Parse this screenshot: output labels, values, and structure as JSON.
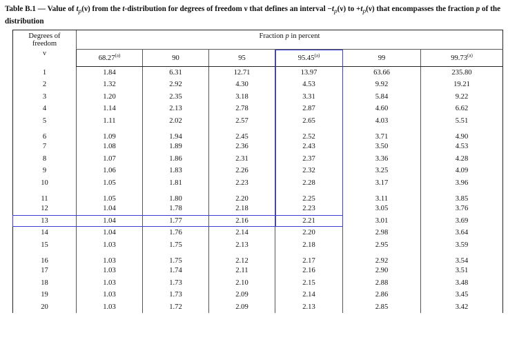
{
  "caption": {
    "label": "Table B.1",
    "dash": " — ",
    "pre1": "Value of ",
    "t_sym": "t",
    "p_sub": "p",
    "v_arg": "(ν)",
    "mid1": " from the ",
    "t_dist": "t",
    "mid2": "-distribution for degrees of freedom ν that defines an interval −",
    "t2": "t",
    "p2": "p",
    "v2": "(ν)",
    "mid3": " to +",
    "t3": "t",
    "p3": "p",
    "v3": "(ν)",
    "mid4": " that encompasses the fraction ",
    "p_frac": "p",
    "end": " of the distribution"
  },
  "table": {
    "dof_header_line1": "Degrees of",
    "dof_header_line2": "freedom",
    "dof_header_line3": "ν",
    "fraction_header_pre": "Fraction ",
    "fraction_header_p": "p",
    "fraction_header_post": " in percent",
    "columns": [
      {
        "label": "68.27",
        "sup": "(a)"
      },
      {
        "label": "90",
        "sup": ""
      },
      {
        "label": "95",
        "sup": ""
      },
      {
        "label": "95.45",
        "sup": "(a)"
      },
      {
        "label": "99",
        "sup": ""
      },
      {
        "label": "99.73",
        "sup": "(a)"
      }
    ],
    "rows": [
      [
        "1",
        "1.84",
        "6.31",
        "12.71",
        "13.97",
        "63.66",
        "235.80"
      ],
      [
        "2",
        "1.32",
        "2.92",
        "4.30",
        "4.53",
        "9.92",
        "19.21"
      ],
      [
        "3",
        "1.20",
        "2.35",
        "3.18",
        "3.31",
        "5.84",
        "9.22"
      ],
      [
        "4",
        "1.14",
        "2.13",
        "2.78",
        "2.87",
        "4.60",
        "6.62"
      ],
      [
        "5",
        "1.11",
        "2.02",
        "2.57",
        "2.65",
        "4.03",
        "5.51"
      ],
      [
        "6",
        "1.09",
        "1.94",
        "2.45",
        "2.52",
        "3.71",
        "4.90"
      ],
      [
        "7",
        "1.08",
        "1.89",
        "2.36",
        "2.43",
        "3.50",
        "4.53"
      ],
      [
        "8",
        "1.07",
        "1.86",
        "2.31",
        "2.37",
        "3.36",
        "4.28"
      ],
      [
        "9",
        "1.06",
        "1.83",
        "2.26",
        "2.32",
        "3.25",
        "4.09"
      ],
      [
        "10",
        "1.05",
        "1.81",
        "2.23",
        "2.28",
        "3.17",
        "3.96"
      ],
      [
        "11",
        "1.05",
        "1.80",
        "2.20",
        "2.25",
        "3.11",
        "3.85"
      ],
      [
        "12",
        "1.04",
        "1.78",
        "2.18",
        "2.23",
        "3.05",
        "3.76"
      ],
      [
        "13",
        "1.04",
        "1.77",
        "2.16",
        "2.21",
        "3.01",
        "3.69"
      ],
      [
        "14",
        "1.04",
        "1.76",
        "2.14",
        "2.20",
        "2.98",
        "3.64"
      ],
      [
        "15",
        "1.03",
        "1.75",
        "2.13",
        "2.18",
        "2.95",
        "3.59"
      ],
      [
        "16",
        "1.03",
        "1.75",
        "2.12",
        "2.17",
        "2.92",
        "3.54"
      ],
      [
        "17",
        "1.03",
        "1.74",
        "2.11",
        "2.16",
        "2.90",
        "3.51"
      ],
      [
        "18",
        "1.03",
        "1.73",
        "2.10",
        "2.15",
        "2.88",
        "3.48"
      ],
      [
        "19",
        "1.03",
        "1.73",
        "2.09",
        "2.14",
        "2.86",
        "3.45"
      ],
      [
        "20",
        "1.03",
        "1.72",
        "2.09",
        "2.13",
        "2.85",
        "3.42"
      ]
    ]
  },
  "highlight": {
    "color": "#3b3bd6",
    "column": "95.45",
    "row": "13"
  }
}
